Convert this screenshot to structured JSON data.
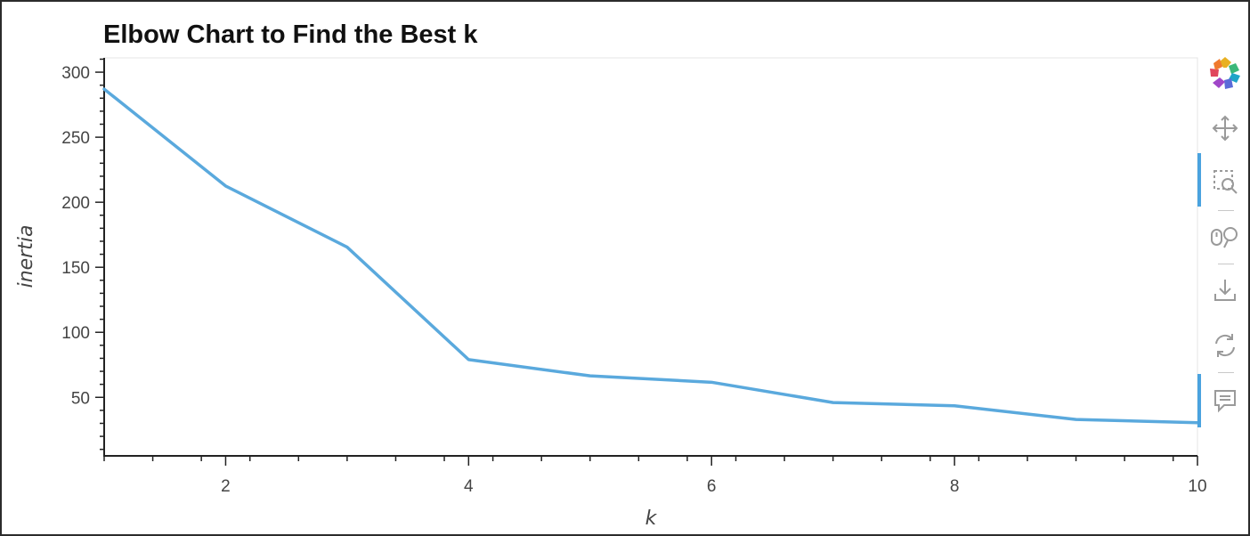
{
  "chart_data": {
    "type": "line",
    "title": "Elbow Chart to Find the Best k",
    "xlabel": "k",
    "ylabel": "inertia",
    "x": [
      1,
      2,
      3,
      4,
      5,
      6,
      7,
      8,
      9,
      10
    ],
    "series": [
      {
        "values": [
          287.0,
          212.5,
          165.5,
          79.0,
          66.5,
          61.6,
          46.0,
          43.5,
          33.0,
          30.5
        ]
      }
    ],
    "xlim": [
      1,
      10
    ],
    "ylim": [
      5,
      311
    ],
    "xticks": [
      2,
      4,
      6,
      8,
      10
    ],
    "yticks": [
      50,
      100,
      150,
      200,
      250,
      300
    ],
    "grid": false,
    "line_color": "#5aa9dd"
  },
  "toolbar": {
    "tools": [
      {
        "name": "bokeh-logo-icon"
      },
      {
        "name": "pan-icon"
      },
      {
        "name": "box-zoom-icon",
        "active": true
      },
      {
        "name": "wheel-zoom-icon"
      },
      {
        "name": "save-icon"
      },
      {
        "name": "reset-icon"
      },
      {
        "name": "hover-icon",
        "active": true
      }
    ]
  }
}
